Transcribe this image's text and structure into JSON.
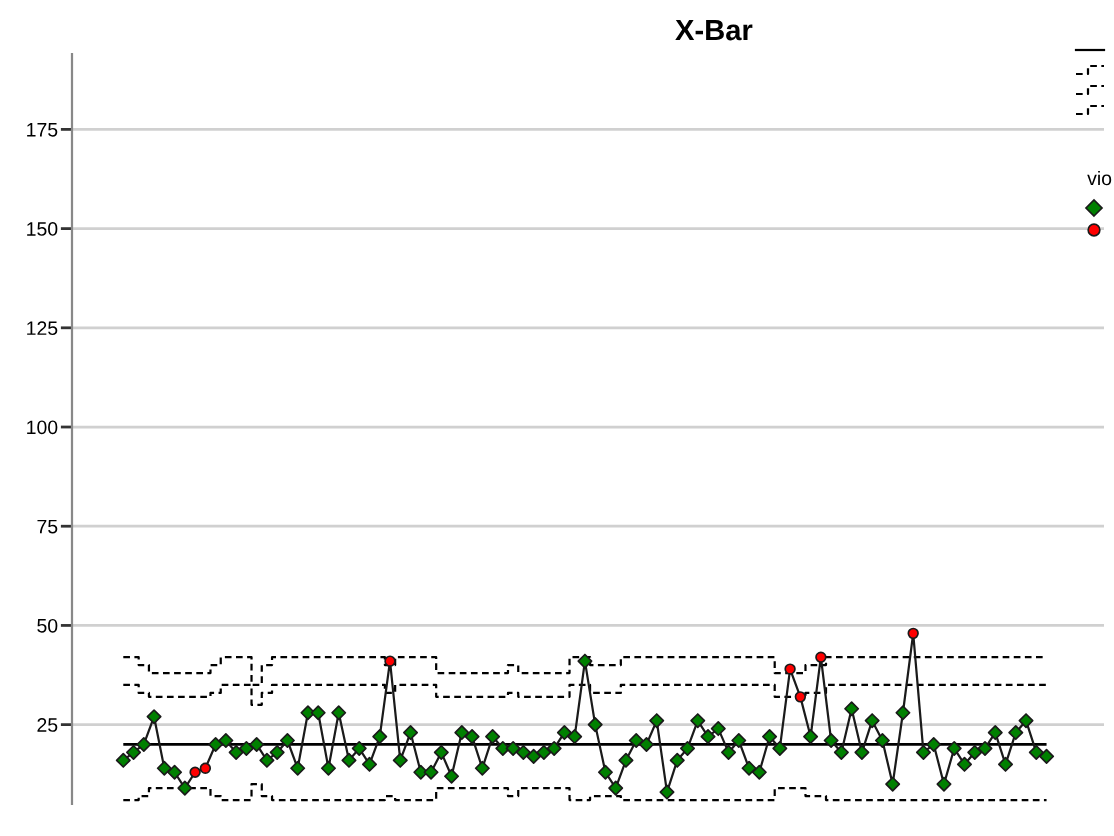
{
  "chart_data": {
    "type": "line",
    "title": "X-Bar",
    "legend_title": "vio",
    "grid": "y",
    "tick_labels": "y",
    "ylim": [
      5,
      194
    ],
    "yticks": [
      25,
      50,
      75,
      100,
      125,
      150,
      175
    ],
    "ref_lines": [
      {
        "axis": "y",
        "value": 20,
        "color": "#000000",
        "line_style": "solid"
      }
    ],
    "categories": [
      null,
      null,
      null,
      null,
      null,
      null,
      null,
      null,
      null,
      null,
      null,
      null,
      null,
      null,
      null,
      null,
      null,
      null,
      null,
      null,
      null,
      null,
      null,
      null,
      null,
      null,
      null,
      null,
      null,
      null,
      null,
      null,
      null,
      null,
      null,
      null,
      null,
      null,
      null,
      null,
      null,
      null,
      null,
      null,
      null,
      null,
      null,
      null,
      null,
      null,
      null,
      null,
      null,
      null,
      null,
      null,
      null,
      null,
      null,
      null,
      null,
      null,
      null,
      null,
      null,
      null,
      null,
      null,
      null,
      null,
      null,
      null,
      null,
      null,
      null,
      null,
      null,
      null,
      null,
      null,
      null,
      null,
      null,
      null,
      null,
      null,
      null,
      null,
      null,
      null,
      null
    ],
    "series": [
      {
        "type": "step",
        "color": "#000000",
        "line_style": "dashed",
        "values": [
          42,
          42,
          40,
          38,
          38,
          38,
          38,
          38,
          38,
          40,
          42,
          42,
          42,
          35,
          40,
          42,
          42,
          42,
          42,
          42,
          42,
          42,
          42,
          42,
          42,
          42,
          40,
          42,
          42,
          42,
          42,
          38,
          38,
          38,
          38,
          38,
          38,
          38,
          40,
          38,
          38,
          38,
          38,
          38,
          42,
          42,
          40,
          40,
          40,
          42,
          42,
          42,
          42,
          42,
          42,
          42,
          42,
          42,
          42,
          42,
          42,
          42,
          42,
          42,
          38,
          38,
          38,
          40,
          40,
          42,
          42,
          42,
          42,
          42,
          42,
          42,
          42,
          42,
          42,
          42,
          42,
          42,
          42,
          42,
          42,
          42,
          42,
          42,
          42,
          42,
          42
        ]
      },
      {
        "type": "step",
        "color": "#000000",
        "line_style": "dashed",
        "values": [
          35,
          35,
          33,
          32,
          32,
          32,
          32,
          32,
          32,
          33,
          35,
          35,
          35,
          30,
          33,
          35,
          35,
          35,
          35,
          35,
          35,
          35,
          35,
          35,
          35,
          35,
          33,
          35,
          35,
          35,
          35,
          32,
          32,
          32,
          32,
          32,
          32,
          32,
          33,
          32,
          32,
          32,
          32,
          32,
          35,
          35,
          33,
          33,
          33,
          35,
          35,
          35,
          35,
          35,
          35,
          35,
          35,
          35,
          35,
          35,
          35,
          35,
          35,
          35,
          32,
          32,
          32,
          33,
          33,
          35,
          35,
          35,
          35,
          35,
          35,
          35,
          35,
          35,
          35,
          35,
          35,
          35,
          35,
          35,
          35,
          35,
          35,
          35,
          35,
          35,
          35
        ]
      },
      {
        "type": "step",
        "color": "#000000",
        "line_style": "dashed",
        "values": [
          6,
          6,
          7,
          9,
          9,
          9,
          9,
          9,
          9,
          7,
          6,
          6,
          6,
          10,
          7,
          6,
          6,
          6,
          6,
          6,
          6,
          6,
          6,
          6,
          6,
          6,
          7,
          6,
          6,
          6,
          6,
          9,
          9,
          9,
          9,
          9,
          9,
          9,
          7,
          9,
          9,
          9,
          9,
          9,
          6,
          6,
          7,
          7,
          7,
          6,
          6,
          6,
          6,
          6,
          6,
          6,
          6,
          6,
          6,
          6,
          6,
          6,
          6,
          6,
          9,
          9,
          9,
          7,
          7,
          6,
          6,
          6,
          6,
          6,
          6,
          6,
          6,
          6,
          6,
          6,
          6,
          6,
          6,
          6,
          6,
          6,
          6,
          6,
          6,
          6,
          6
        ]
      },
      {
        "color": "#1a1a1a",
        "marker": "none",
        "values": [
          16,
          18,
          20,
          27,
          14,
          13,
          9,
          13,
          14,
          20,
          21,
          18,
          19,
          20,
          16,
          18,
          21,
          14,
          28,
          28,
          14,
          28,
          16,
          19,
          15,
          22,
          41,
          16,
          23,
          13,
          13,
          18,
          12,
          23,
          22,
          14,
          22,
          19,
          19,
          18,
          17,
          18,
          19,
          23,
          22,
          41,
          25,
          13,
          9,
          16,
          21,
          20,
          26,
          8,
          16,
          19,
          26,
          22,
          24,
          18,
          21,
          14,
          13,
          22,
          19,
          39,
          32,
          22,
          42,
          21,
          18,
          29,
          18,
          26,
          21,
          10,
          28,
          48,
          18,
          20,
          10,
          19,
          15,
          18,
          19,
          23,
          15,
          23,
          26,
          18,
          17
        ]
      },
      {
        "type": "scatter",
        "color": "#008000",
        "marker": "diamond",
        "values": [
          16,
          18,
          20,
          27,
          14,
          13,
          9,
          null,
          null,
          20,
          21,
          18,
          19,
          20,
          16,
          18,
          21,
          14,
          28,
          28,
          14,
          28,
          16,
          19,
          15,
          22,
          null,
          16,
          23,
          13,
          13,
          18,
          12,
          23,
          22,
          14,
          22,
          19,
          19,
          18,
          17,
          18,
          19,
          23,
          22,
          41,
          25,
          13,
          9,
          16,
          21,
          20,
          26,
          8,
          16,
          19,
          26,
          22,
          24,
          18,
          21,
          14,
          13,
          22,
          19,
          null,
          null,
          22,
          null,
          21,
          18,
          29,
          18,
          26,
          21,
          10,
          28,
          null,
          18,
          20,
          10,
          19,
          15,
          18,
          19,
          23,
          15,
          23,
          26,
          18,
          17
        ]
      },
      {
        "type": "scatter",
        "color": "#ff0000",
        "marker": "circle",
        "values": [
          null,
          null,
          null,
          null,
          null,
          null,
          null,
          13,
          14,
          null,
          null,
          null,
          null,
          null,
          null,
          null,
          null,
          null,
          null,
          null,
          null,
          null,
          null,
          null,
          null,
          null,
          41,
          null,
          null,
          null,
          null,
          null,
          null,
          null,
          null,
          null,
          null,
          null,
          null,
          null,
          null,
          null,
          null,
          null,
          null,
          null,
          null,
          null,
          null,
          null,
          null,
          null,
          null,
          null,
          null,
          null,
          null,
          null,
          null,
          null,
          null,
          null,
          null,
          null,
          null,
          39,
          32,
          null,
          42,
          null,
          null,
          null,
          null,
          null,
          null,
          null,
          null,
          48,
          null,
          null,
          null,
          null,
          null,
          null,
          null,
          null,
          null,
          null,
          null,
          null,
          null
        ]
      }
    ]
  }
}
